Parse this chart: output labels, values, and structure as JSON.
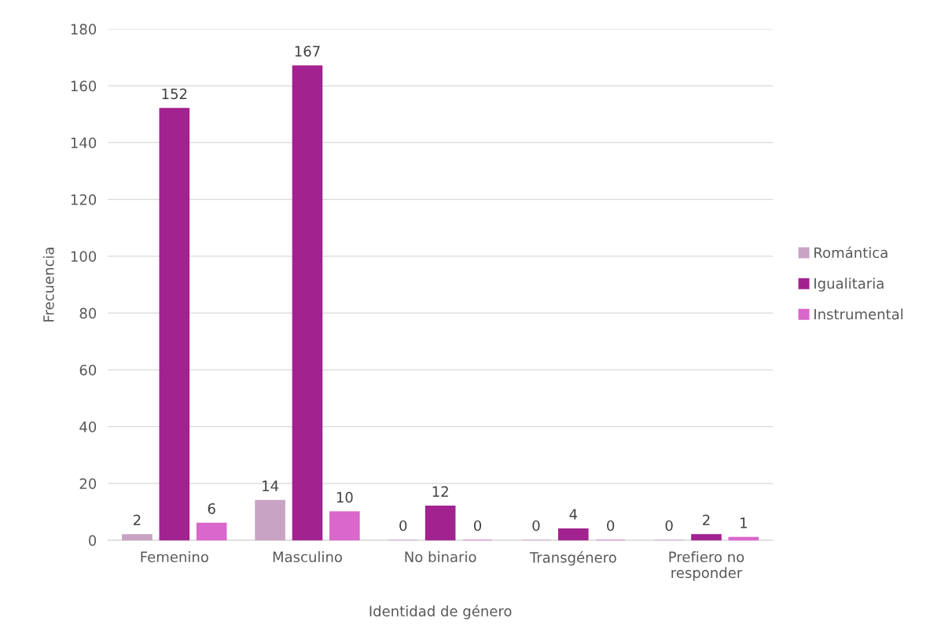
{
  "chart_data": {
    "type": "bar",
    "xlabel": "Identidad de género",
    "ylabel": "Frecuencia",
    "categories": [
      "Femenino",
      "Masculino",
      "No binario",
      "Transgénero",
      "Prefiero no responder"
    ],
    "series": [
      {
        "name": "Romántica",
        "color": "#c9a3c3",
        "values": [
          2,
          14,
          0,
          0,
          0
        ]
      },
      {
        "name": "Igualitaria",
        "color": "#a2228f",
        "values": [
          152,
          167,
          12,
          4,
          2
        ]
      },
      {
        "name": "Instrumental",
        "color": "#d967cc",
        "values": [
          6,
          10,
          0,
          0,
          1
        ]
      }
    ],
    "ylim": [
      0,
      180
    ],
    "yticks": [
      0,
      20,
      40,
      60,
      80,
      100,
      120,
      140,
      160,
      180
    ],
    "grid": "y",
    "legend": "right",
    "data_labels": true
  }
}
